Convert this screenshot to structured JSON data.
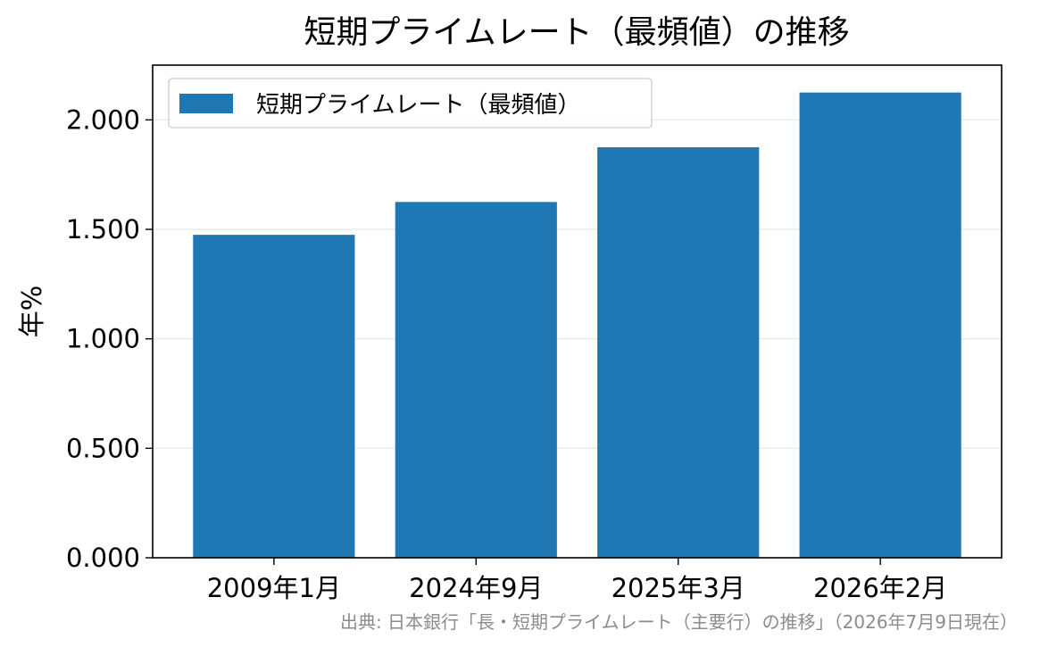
{
  "chart_data": {
    "type": "bar",
    "title": "短期プライムレート（最頻値）の推移",
    "xlabel": "",
    "ylabel": "年%",
    "categories": [
      "2009年1月",
      "2024年9月",
      "2025年3月",
      "2026年2月"
    ],
    "series": [
      {
        "name": "短期プライムレート（最頻値）",
        "values": [
          1.475,
          1.625,
          1.875,
          2.125
        ],
        "color": "#1f77b4"
      }
    ],
    "ylim": [
      0,
      2.25
    ],
    "yticks": [
      "0.000",
      "0.500",
      "1.000",
      "1.500",
      "2.000"
    ],
    "grid": "y",
    "legend_position": "upper-left",
    "source_note": "出典: 日本銀行「長・短期プライムレート（主要行）の推移」（2026年7月9日現在）"
  }
}
